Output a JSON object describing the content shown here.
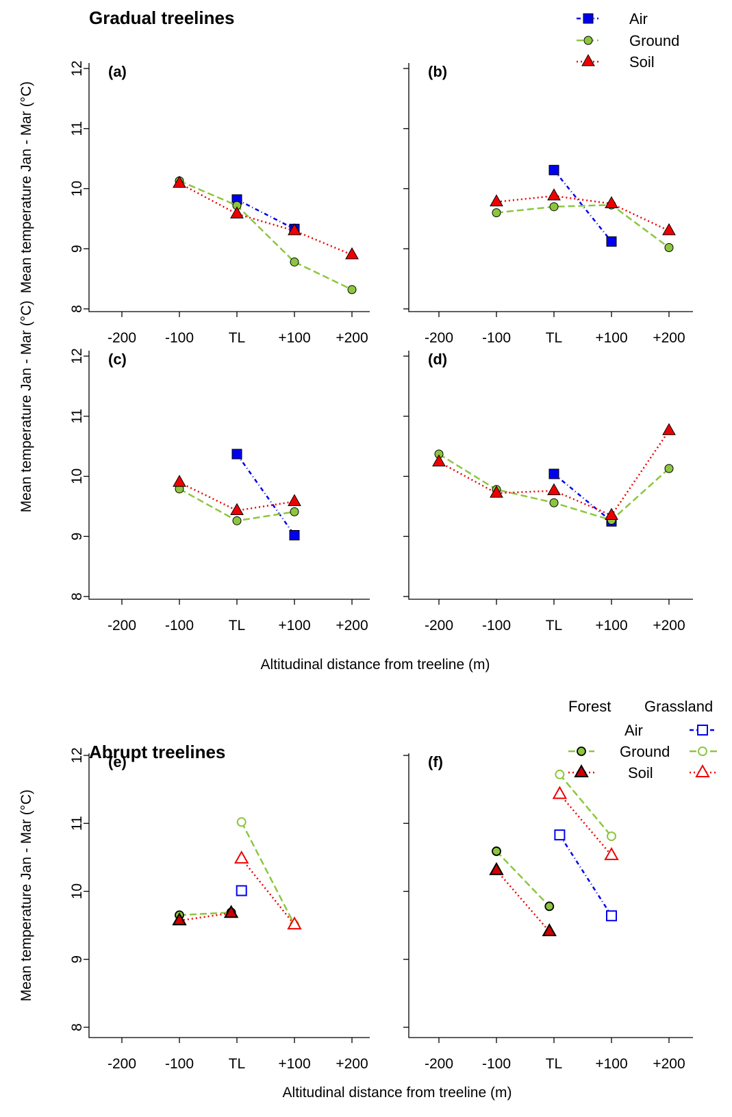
{
  "colors": {
    "air": "#0000EE",
    "ground": "#8CC63F",
    "soil": "#EE0000",
    "forest_outline": "#000000"
  },
  "gradual_title": "Gradual treelines",
  "abrupt_title": "Abrupt treelines",
  "legend_gradual": {
    "air": "Air",
    "ground": "Ground",
    "soil": "Soil"
  },
  "legend_abrupt": {
    "forest": "Forest",
    "grassland": "Grassland",
    "air": "Air",
    "ground": "Ground",
    "soil": "Soil"
  },
  "chart_data": [
    {
      "type": "line",
      "panel": "(a)",
      "categories": [
        "-200",
        "-100",
        "TL",
        "+100",
        "+200"
      ],
      "ylabel": "Mean temperature Jan - Mar (°C)",
      "ylim": [
        8,
        12
      ],
      "yticks": [
        "8",
        "9",
        "10",
        "11",
        "12"
      ],
      "series": [
        {
          "name": "Air",
          "x": [
            0,
            100
          ],
          "y": [
            9.82,
            9.33
          ]
        },
        {
          "name": "Ground",
          "x": [
            -100,
            0,
            100,
            200
          ],
          "y": [
            10.13,
            9.72,
            8.78,
            8.32
          ]
        },
        {
          "name": "Soil",
          "x": [
            -100,
            0,
            100,
            200
          ],
          "y": [
            10.09,
            9.58,
            9.3,
            8.9
          ]
        }
      ]
    },
    {
      "type": "line",
      "panel": "(b)",
      "categories": [
        "-200",
        "-100",
        "TL",
        "+100",
        "+200"
      ],
      "ylim": [
        8,
        12
      ],
      "series": [
        {
          "name": "Air",
          "x": [
            0,
            100
          ],
          "y": [
            10.31,
            9.12
          ]
        },
        {
          "name": "Ground",
          "x": [
            -100,
            0,
            100,
            200
          ],
          "y": [
            9.6,
            9.7,
            9.73,
            9.02
          ]
        },
        {
          "name": "Soil",
          "x": [
            -100,
            0,
            100,
            200
          ],
          "y": [
            9.78,
            9.88,
            9.75,
            9.3
          ]
        }
      ]
    },
    {
      "type": "line",
      "panel": "(c)",
      "categories": [
        "-200",
        "-100",
        "TL",
        "+100",
        "+200"
      ],
      "ylabel": "Mean temperature Jan - Mar (°C)",
      "xlabel": "Altitudinal distance from treeline (m)",
      "ylim": [
        8,
        12
      ],
      "yticks": [
        "8",
        "9",
        "10",
        "11",
        "12"
      ],
      "series": [
        {
          "name": "Air",
          "x": [
            0,
            100
          ],
          "y": [
            10.37,
            9.02
          ]
        },
        {
          "name": "Ground",
          "x": [
            -100,
            0,
            100
          ],
          "y": [
            9.79,
            9.26,
            9.41
          ]
        },
        {
          "name": "Soil",
          "x": [
            -100,
            0,
            100
          ],
          "y": [
            9.9,
            9.43,
            9.58
          ]
        }
      ]
    },
    {
      "type": "line",
      "panel": "(d)",
      "categories": [
        "-200",
        "-100",
        "TL",
        "+100",
        "+200"
      ],
      "xlabel": "Altitudinal distance from treeline (m)",
      "ylim": [
        8,
        12
      ],
      "series": [
        {
          "name": "Air",
          "x": [
            0,
            100
          ],
          "y": [
            10.04,
            9.25
          ]
        },
        {
          "name": "Ground",
          "x": [
            -200,
            -100,
            0,
            100,
            200
          ],
          "y": [
            10.37,
            9.78,
            9.56,
            9.27,
            10.13
          ]
        },
        {
          "name": "Soil",
          "x": [
            -200,
            -100,
            0,
            100,
            200
          ],
          "y": [
            10.24,
            9.72,
            9.76,
            9.35,
            10.76
          ]
        }
      ]
    },
    {
      "type": "line",
      "panel": "(e)",
      "categories": [
        "-200",
        "-100",
        "TL",
        "+100",
        "+200"
      ],
      "ylabel": "Mean temperature Jan - Mar (°C)",
      "ylim": [
        8,
        12
      ],
      "yticks": [
        "8",
        "9",
        "10",
        "11",
        "12"
      ],
      "series": [
        {
          "name": "Air",
          "habitat": "Grassland",
          "x": [
            8
          ],
          "y": [
            10.01
          ]
        },
        {
          "name": "Ground",
          "habitat": "Forest",
          "x": [
            -100,
            -10
          ],
          "y": [
            9.65,
            9.69
          ]
        },
        {
          "name": "Soil",
          "habitat": "Forest",
          "x": [
            -100,
            -10
          ],
          "y": [
            9.57,
            9.68
          ]
        },
        {
          "name": "Ground",
          "habitat": "Grassland",
          "x": [
            8,
            100
          ],
          "y": [
            11.02,
            9.51
          ]
        },
        {
          "name": "Soil",
          "habitat": "Grassland",
          "x": [
            8,
            100
          ],
          "y": [
            10.48,
            9.51
          ]
        }
      ]
    },
    {
      "type": "line",
      "panel": "(f)",
      "categories": [
        "-200",
        "-100",
        "TL",
        "+100",
        "+200"
      ],
      "xlabel": "Altitudinal distance from treeline (m)",
      "ylim": [
        8,
        12
      ],
      "series": [
        {
          "name": "Air",
          "habitat": "Grassland",
          "x": [
            10,
            100
          ],
          "y": [
            10.83,
            9.64
          ]
        },
        {
          "name": "Ground",
          "habitat": "Forest",
          "x": [
            -100,
            -8
          ],
          "y": [
            10.59,
            9.78
          ]
        },
        {
          "name": "Soil",
          "habitat": "Forest",
          "x": [
            -100,
            -8
          ],
          "y": [
            10.31,
            9.41
          ]
        },
        {
          "name": "Ground",
          "habitat": "Grassland",
          "x": [
            10,
            100
          ],
          "y": [
            11.72,
            10.81
          ]
        },
        {
          "name": "Soil",
          "habitat": "Grassland",
          "x": [
            10,
            100
          ],
          "y": [
            11.43,
            10.53
          ]
        }
      ]
    }
  ]
}
